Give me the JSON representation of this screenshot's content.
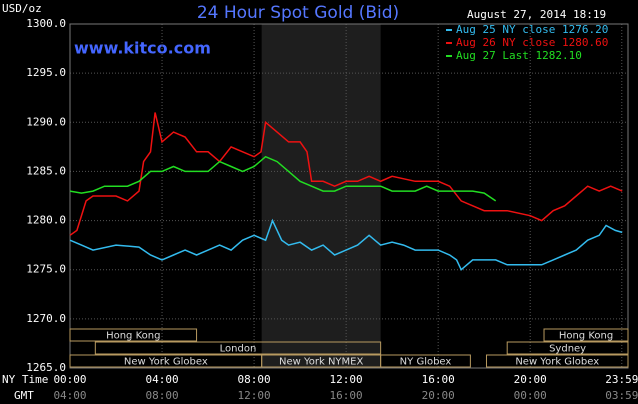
{
  "chart_data": {
    "type": "line",
    "title": "24 Hour Spot Gold (Bid)",
    "y_unit": "USD/oz",
    "timestamp": "August 27, 2014 18:19",
    "website": "www.kitco.com",
    "x_row_label": "NY Time",
    "x2_row_label": "GMT",
    "xlim": [
      0,
      24.25
    ],
    "ylim": [
      1265,
      1300
    ],
    "yticks": [
      {
        "value": 1265,
        "label": "1265.0"
      },
      {
        "value": 1270,
        "label": "1270.0"
      },
      {
        "value": 1275,
        "label": "1275.0"
      },
      {
        "value": 1280,
        "label": "1280.0"
      },
      {
        "value": 1285,
        "label": "1285.0"
      },
      {
        "value": 1290,
        "label": "1290.0"
      },
      {
        "value": 1295,
        "label": "1295.0"
      },
      {
        "value": 1300,
        "label": "1300.0"
      }
    ],
    "xticks": [
      {
        "value": 0,
        "label": "00:00"
      },
      {
        "value": 4,
        "label": "04:00"
      },
      {
        "value": 8,
        "label": "08:00"
      },
      {
        "value": 12,
        "label": "12:00"
      },
      {
        "value": 16,
        "label": "16:00"
      },
      {
        "value": 20,
        "label": "20:00"
      },
      {
        "value": 23.98,
        "label": "23:59"
      }
    ],
    "x2ticks": [
      {
        "value": 0,
        "label": "04:00"
      },
      {
        "value": 4,
        "label": "08:00"
      },
      {
        "value": 8,
        "label": "12:00"
      },
      {
        "value": 12,
        "label": "16:00"
      },
      {
        "value": 16,
        "label": "20:00"
      },
      {
        "value": 20,
        "label": "00:00"
      },
      {
        "value": 23.98,
        "label": "03:59"
      }
    ],
    "grid": true,
    "shaded_region": [
      8.33,
      13.5
    ],
    "sessions": [
      {
        "label": "Hong Kong",
        "start": 0,
        "end": 5.5,
        "row": 0
      },
      {
        "label": "Hong Kong",
        "start": 20.6,
        "end": 24.25,
        "row": 0
      },
      {
        "label": "London",
        "start": 1.1,
        "end": 13.5,
        "row": 1
      },
      {
        "label": "Sydney",
        "start": 19.0,
        "end": 24.25,
        "row": 1
      },
      {
        "label": "New York Globex",
        "start": 0,
        "end": 8.33,
        "row": 2
      },
      {
        "label": "New York NYMEX",
        "start": 8.33,
        "end": 13.5,
        "row": 2
      },
      {
        "label": "NY Globex",
        "start": 13.5,
        "end": 17.4,
        "row": 2
      },
      {
        "label": "New York Globex",
        "start": 18.1,
        "end": 24.25,
        "row": 2
      }
    ],
    "series": [
      {
        "name": "Aug 25 NY close 1276.20",
        "color": "#33bbee",
        "x": [
          0,
          0.5,
          1,
          2,
          3,
          3.5,
          4,
          4.5,
          5,
          5.5,
          6,
          6.5,
          7,
          7.5,
          8,
          8.5,
          8.8,
          9.2,
          9.5,
          10,
          10.5,
          11,
          11.5,
          12,
          12.5,
          13,
          13.5,
          14,
          14.5,
          15,
          15.5,
          16,
          16.5,
          16.8,
          17,
          17.5,
          18,
          18.5,
          19,
          20,
          20.5,
          21,
          21.5,
          22,
          22.5,
          23,
          23.3,
          23.7,
          24
        ],
        "values": [
          1278,
          1277.5,
          1277,
          1277.5,
          1277.3,
          1276.5,
          1276,
          1276.5,
          1277,
          1276.5,
          1277,
          1277.5,
          1277,
          1278,
          1278.5,
          1278,
          1280,
          1278,
          1277.5,
          1277.8,
          1277,
          1277.5,
          1276.5,
          1277,
          1277.5,
          1278.5,
          1277.5,
          1277.8,
          1277.5,
          1277,
          1277,
          1277,
          1276.5,
          1276,
          1275,
          1276,
          1276,
          1276,
          1275.5,
          1275.5,
          1275.5,
          1276,
          1276.5,
          1277,
          1278,
          1278.5,
          1279.5,
          1279,
          1278.8
        ]
      },
      {
        "name": "Aug 26 NY close 1280.60",
        "color": "#ee1111",
        "x": [
          0,
          0.3,
          0.7,
          1,
          2,
          2.5,
          3,
          3.2,
          3.5,
          3.7,
          4,
          4.5,
          5,
          5.5,
          6,
          6.5,
          7,
          7.5,
          8,
          8.3,
          8.5,
          9,
          9.5,
          10,
          10.3,
          10.5,
          11,
          11.5,
          12,
          12.5,
          13,
          13.5,
          14,
          15,
          16,
          16.5,
          17,
          17.5,
          18,
          18.5,
          19,
          20,
          20.5,
          21,
          21.5,
          22,
          22.5,
          23,
          23.5,
          24
        ],
        "values": [
          1278.5,
          1279,
          1282,
          1282.5,
          1282.5,
          1282,
          1283,
          1286,
          1287,
          1291,
          1288,
          1289,
          1288.5,
          1287,
          1287,
          1286,
          1287.5,
          1287,
          1286.5,
          1287,
          1290,
          1289,
          1288,
          1288,
          1287,
          1284,
          1284,
          1283.5,
          1284,
          1284,
          1284.5,
          1284,
          1284.5,
          1284,
          1284,
          1283.5,
          1282,
          1281.5,
          1281,
          1281,
          1281,
          1280.5,
          1280,
          1281,
          1281.5,
          1282.5,
          1283.5,
          1283,
          1283.5,
          1283
        ]
      },
      {
        "name": "Aug 27 Last 1282.10",
        "color": "#22dd22",
        "x": [
          0,
          0.5,
          1,
          1.5,
          2,
          2.5,
          3,
          3.5,
          4,
          4.5,
          5,
          5.5,
          6,
          6.5,
          7,
          7.5,
          8,
          8.5,
          9,
          9.5,
          10,
          10.5,
          11,
          11.5,
          12,
          12.5,
          13,
          13.5,
          14,
          14.5,
          15,
          15.5,
          16,
          16.5,
          17,
          17.5,
          18,
          18.5
        ],
        "values": [
          1283,
          1282.8,
          1283,
          1283.5,
          1283.5,
          1283.5,
          1284,
          1285,
          1285,
          1285.5,
          1285,
          1285,
          1285,
          1286,
          1285.5,
          1285,
          1285.5,
          1286.5,
          1286,
          1285,
          1284,
          1283.5,
          1283,
          1283,
          1283.5,
          1283.5,
          1283.5,
          1283.5,
          1283,
          1283,
          1283,
          1283.5,
          1283,
          1283,
          1283,
          1283,
          1282.8,
          1282
        ]
      }
    ]
  }
}
